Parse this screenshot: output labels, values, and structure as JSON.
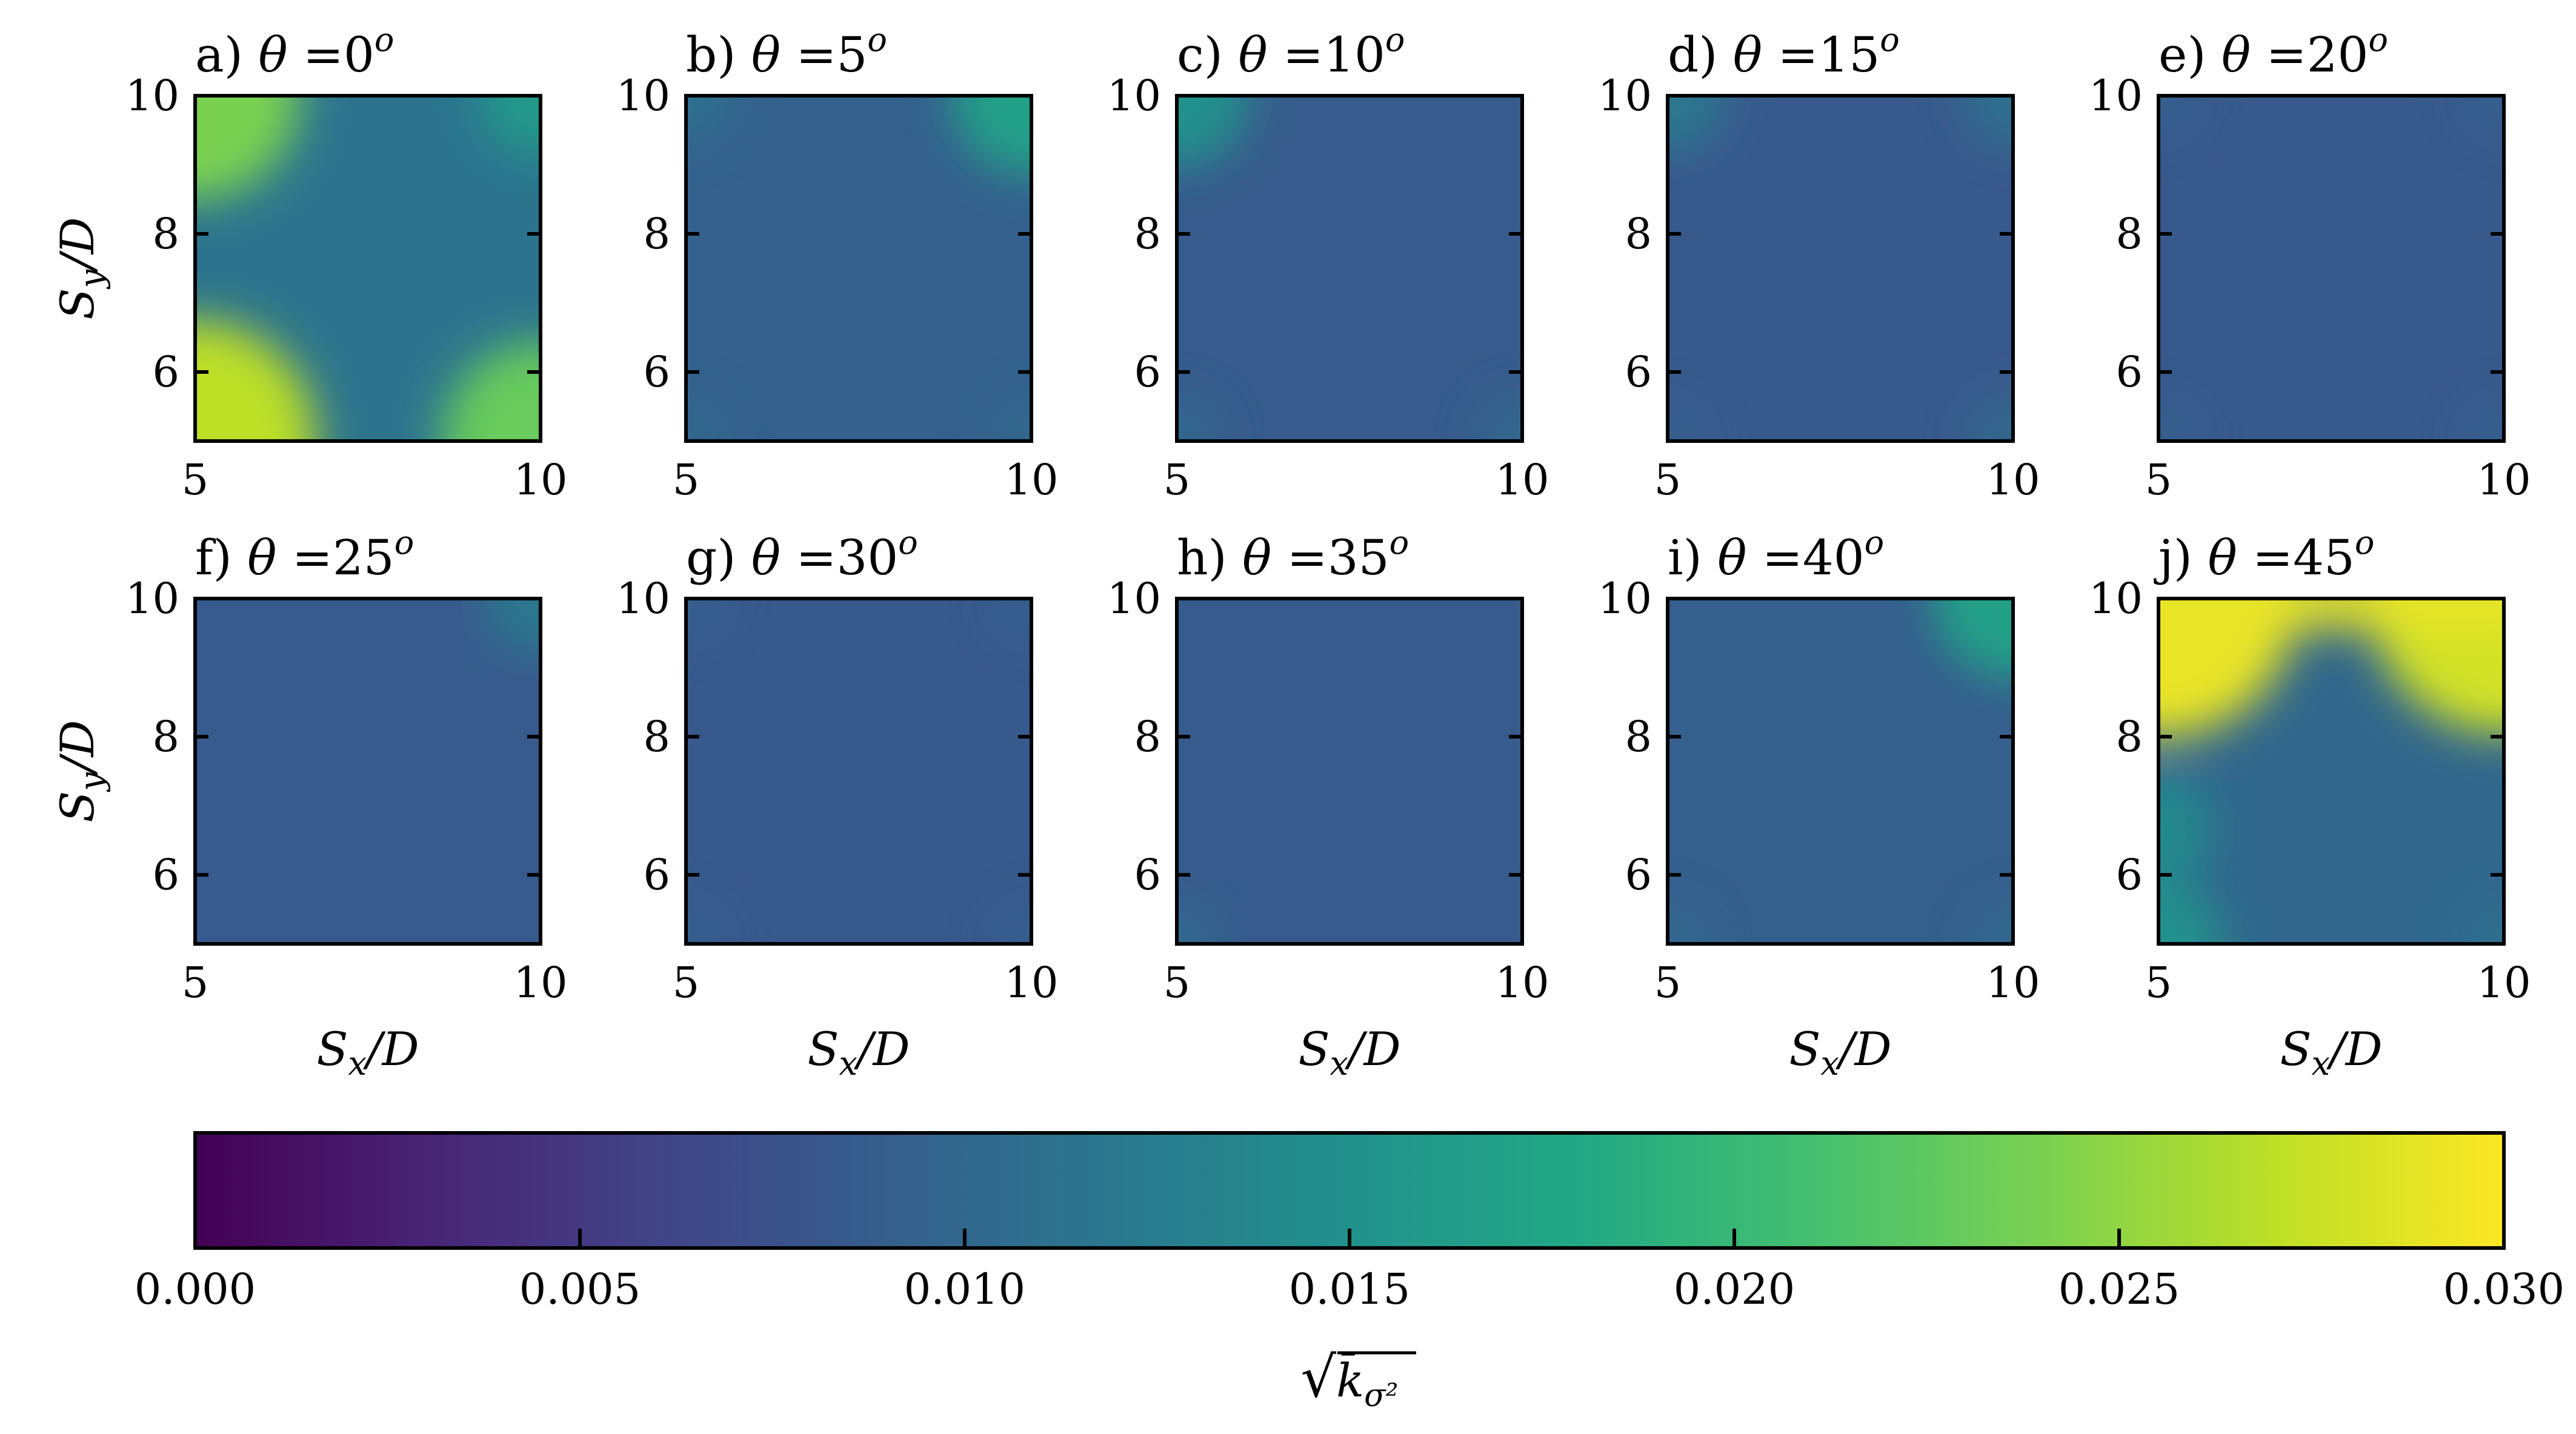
{
  "chart_data": {
    "type": "heatmap",
    "colormap": "viridis",
    "panels": [
      {
        "label": "a)",
        "theta": "0",
        "corner_hotspots": {
          "tl": 0.024,
          "tr": 0.016,
          "bl": 0.027,
          "br": 0.023
        },
        "base": 0.0115
      },
      {
        "label": "b)",
        "theta": "5",
        "corner_hotspots": {
          "tl": 0.011,
          "tr": 0.017,
          "bl": 0.01,
          "br": 0.01
        },
        "base": 0.0092
      },
      {
        "label": "c)",
        "theta": "10",
        "corner_hotspots": {
          "tl": 0.015,
          "tr": 0.009,
          "bl": 0.01,
          "br": 0.01
        },
        "base": 0.0085
      },
      {
        "label": "d)",
        "theta": "15",
        "corner_hotspots": {
          "tl": 0.012,
          "tr": 0.011,
          "bl": 0.009,
          "br": 0.01
        },
        "base": 0.0083
      },
      {
        "label": "e)",
        "theta": "20",
        "corner_hotspots": {
          "tl": 0.009,
          "tr": 0.009,
          "bl": 0.009,
          "br": 0.009
        },
        "base": 0.0083
      },
      {
        "label": "f)",
        "theta": "25",
        "corner_hotspots": {
          "tl": 0.009,
          "tr": 0.012,
          "bl": 0.009,
          "br": 0.009
        },
        "base": 0.0085
      },
      {
        "label": "g)",
        "theta": "30",
        "corner_hotspots": {
          "tl": 0.009,
          "tr": 0.009,
          "bl": 0.009,
          "br": 0.009
        },
        "base": 0.0083
      },
      {
        "label": "h)",
        "theta": "35",
        "corner_hotspots": {
          "tl": 0.009,
          "tr": 0.009,
          "bl": 0.01,
          "br": 0.009
        },
        "base": 0.0085
      },
      {
        "label": "i)",
        "theta": "40",
        "corner_hotspots": {
          "tl": 0.009,
          "tr": 0.017,
          "bl": 0.01,
          "br": 0.01
        },
        "base": 0.009
      },
      {
        "label": "j)",
        "theta": "45",
        "corner_hotspots": {
          "tl": 0.029,
          "tr": 0.028,
          "bl": 0.015,
          "br": 0.011
        },
        "base": 0.01
      }
    ],
    "x_ticks": [
      "5",
      "10"
    ],
    "y_ticks": [
      "6",
      "8",
      "10"
    ],
    "xlim": [
      5,
      10
    ],
    "ylim": [
      5,
      10
    ],
    "xlabel": "S_x/D",
    "ylabel": "S_y/D",
    "colorbar": {
      "ticks": [
        "0.000",
        "0.005",
        "0.010",
        "0.015",
        "0.020",
        "0.025",
        "0.030"
      ],
      "range": [
        0,
        0.03
      ],
      "label": "√k̄σ²"
    }
  }
}
